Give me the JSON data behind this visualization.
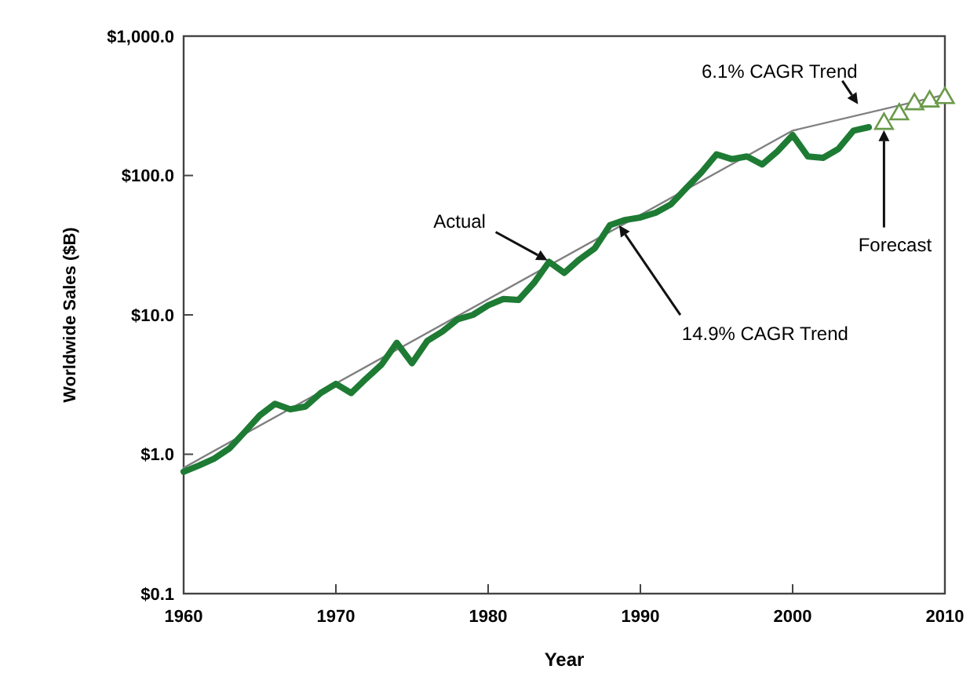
{
  "chart_data": {
    "type": "line",
    "xlabel": "Year",
    "ylabel": "Worldwide Sales ($B)",
    "log": "y",
    "grid": false,
    "xlim": [
      1960,
      2010
    ],
    "xticks": [
      1960,
      1970,
      1980,
      1990,
      2000,
      2010
    ],
    "ylim": [
      0.1,
      1000
    ],
    "yticks": [
      {
        "value": 0.1,
        "label": "$0.1"
      },
      {
        "value": 1,
        "label": "$1.0"
      },
      {
        "value": 10,
        "label": "$10.0"
      },
      {
        "value": 100,
        "label": "$100.0"
      },
      {
        "value": 1000,
        "label": "$1,000.0"
      }
    ],
    "series": [
      {
        "color": "#808080",
        "x": [
          1960,
          2000,
          2010
        ],
        "values": [
          0.8,
          210,
          380
        ]
      },
      {
        "color": "#1e7b34",
        "x": [
          1960,
          1961,
          1962,
          1963,
          1964,
          1965,
          1966,
          1967,
          1968,
          1969,
          1970,
          1971,
          1972,
          1973,
          1974,
          1975,
          1976,
          1977,
          1978,
          1979,
          1980,
          1981,
          1982,
          1983,
          1984,
          1985,
          1986,
          1987,
          1988,
          1989,
          1990,
          1991,
          1992,
          1993,
          1994,
          1995,
          1996,
          1997,
          1998,
          1999,
          2000,
          2001,
          2002,
          2003,
          2004,
          2005
        ],
        "values": [
          0.75,
          0.83,
          0.93,
          1.1,
          1.44,
          1.9,
          2.3,
          2.1,
          2.2,
          2.75,
          3.2,
          2.75,
          3.5,
          4.4,
          6.3,
          4.5,
          6.5,
          7.6,
          9.3,
          10,
          11.7,
          13,
          12.8,
          16.9,
          24,
          20,
          25,
          30,
          44,
          48,
          50,
          54,
          62,
          81,
          105,
          142,
          131,
          137,
          120,
          149,
          195,
          137,
          134,
          155,
          210,
          222
        ]
      },
      {
        "type": "scatter",
        "marker": "triangle",
        "color": "#6a9a4a",
        "x": [
          2006,
          2007,
          2008,
          2009,
          2010
        ],
        "values": [
          235,
          275,
          325,
          340,
          360
        ]
      }
    ],
    "annotations": [
      {
        "text": "Actual",
        "x": 1984,
        "y": 24
      },
      {
        "text": "14.9% CAGR Trend",
        "x": 1988.5,
        "y": 45
      },
      {
        "text": "6.1% CAGR Trend",
        "x": 2004.5,
        "y": 300
      },
      "Forecast"
    ]
  }
}
